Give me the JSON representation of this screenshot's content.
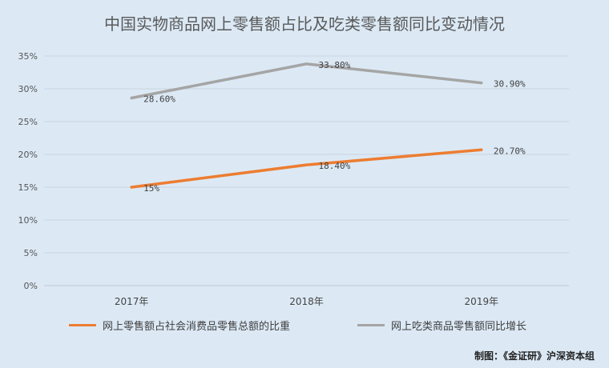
{
  "chart_data": {
    "type": "line",
    "title": "中国实物商品网上零售额占比及吃类零售额同比变动情况",
    "categories": [
      "2017年",
      "2018年",
      "2019年"
    ],
    "y_ticks": [
      "0%",
      "5%",
      "10%",
      "15%",
      "20%",
      "25%",
      "30%",
      "35%"
    ],
    "ylim": [
      0,
      35
    ],
    "grid": true,
    "legend_position": "bottom",
    "series": [
      {
        "name": "网上零售额占社会消费品零售总额的比重",
        "values": [
          15,
          18.4,
          20.7
        ],
        "labels": [
          "15%",
          "18.40%",
          "20.70%"
        ],
        "color": "#ed7d31"
      },
      {
        "name": "网上吃类商品零售额同比增长",
        "values": [
          28.6,
          33.8,
          30.9
        ],
        "labels": [
          "28.60%",
          "33.80%",
          "30.90%"
        ],
        "color": "#a5a5a5"
      }
    ]
  },
  "credit": "制图：《金证研》沪深资本组"
}
